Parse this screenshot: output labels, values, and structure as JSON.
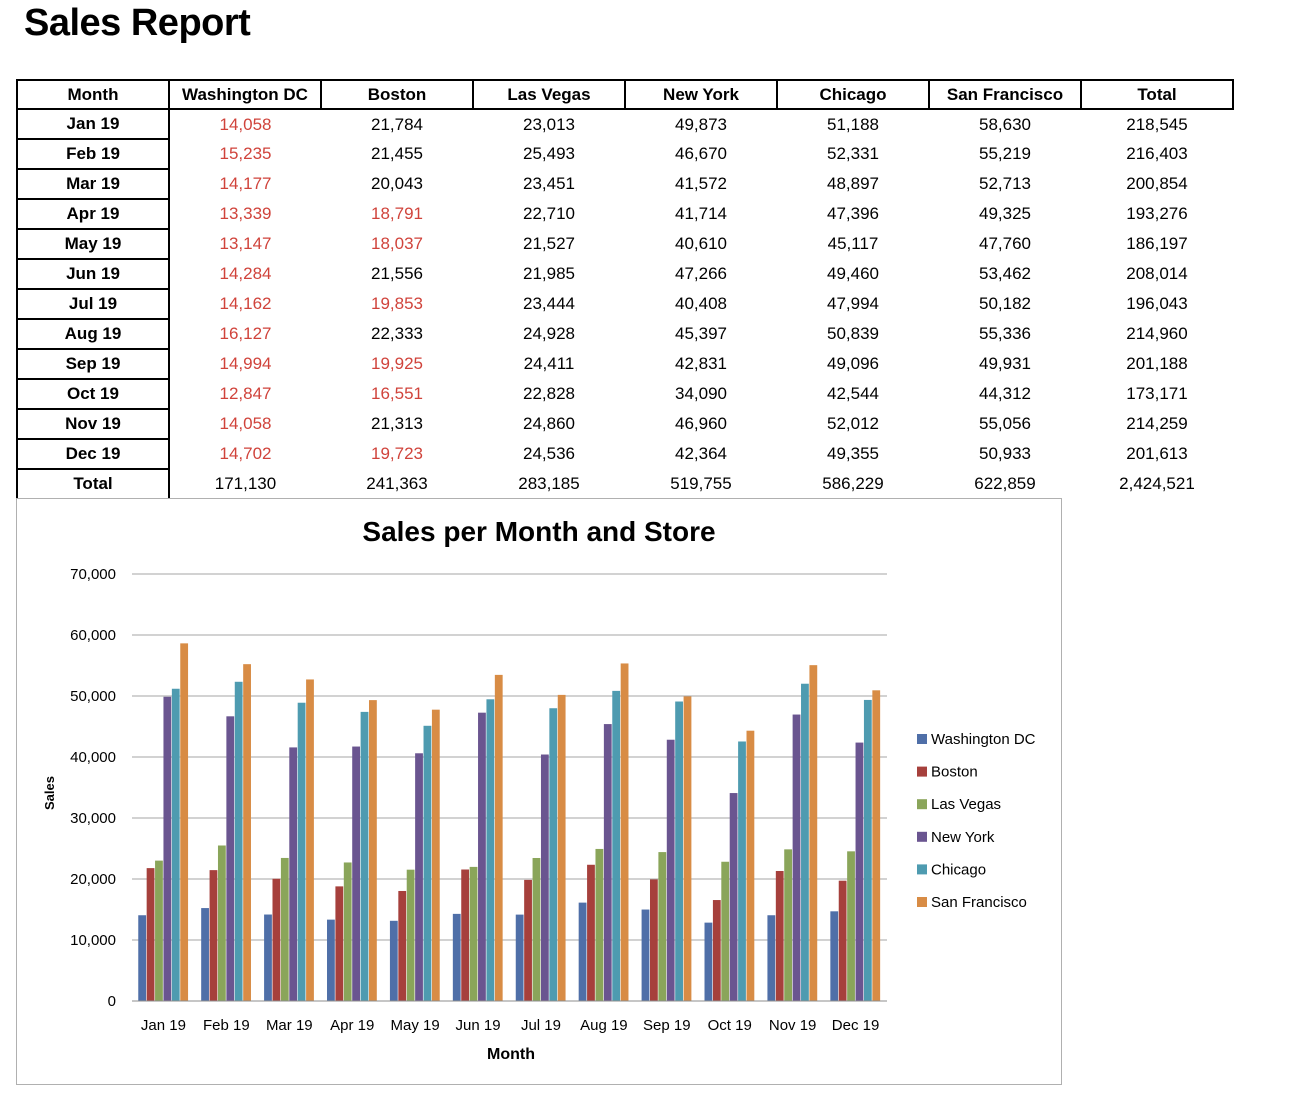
{
  "report": {
    "title": "Sales Report"
  },
  "table": {
    "header_first": "Month",
    "header_total": "Total",
    "total_row_label": "Total",
    "low_threshold": 20000,
    "column_totals": [
      "171,130",
      "241,363",
      "283,185",
      "519,755",
      "586,229",
      "622,859"
    ],
    "grand_total": "2,424,521",
    "row_totals": [
      "218,545",
      "216,403",
      "200,854",
      "193,276",
      "186,197",
      "208,014",
      "196,043",
      "214,960",
      "201,188",
      "173,171",
      "214,259",
      "201,613"
    ]
  },
  "colors": {
    "low_value_text": "#d0433b",
    "gridline": "#a6a6a6"
  },
  "chart_data": {
    "type": "bar",
    "title": "Sales per Month and Store",
    "xlabel": "Month",
    "ylabel": "Sales",
    "ylim": [
      0,
      70000
    ],
    "yticks": [
      "0",
      "10,000",
      "20,000",
      "30,000",
      "40,000",
      "50,000",
      "60,000",
      "70,000"
    ],
    "grid": true,
    "legend": "right",
    "categories": [
      "Jan 19",
      "Feb 19",
      "Mar 19",
      "Apr 19",
      "May 19",
      "Jun 19",
      "Jul 19",
      "Aug 19",
      "Sep 19",
      "Oct 19",
      "Nov 19",
      "Dec 19"
    ],
    "series": [
      {
        "name": "Washington DC",
        "color": "#4f6fa8",
        "values": [
          14058,
          15235,
          14177,
          13339,
          13147,
          14284,
          14162,
          16127,
          14994,
          12847,
          14058,
          14702
        ]
      },
      {
        "name": "Boston",
        "color": "#a6403c",
        "values": [
          21784,
          21455,
          20043,
          18791,
          18037,
          21556,
          19853,
          22333,
          19925,
          16551,
          21313,
          19723
        ]
      },
      {
        "name": "Las Vegas",
        "color": "#8aa55a",
        "values": [
          23013,
          25493,
          23451,
          22710,
          21527,
          21985,
          23444,
          24928,
          24411,
          22828,
          24860,
          24536
        ]
      },
      {
        "name": "New York",
        "color": "#6a5590",
        "values": [
          49873,
          46670,
          41572,
          41714,
          40610,
          47266,
          40408,
          45397,
          42831,
          34090,
          46960,
          42364
        ]
      },
      {
        "name": "Chicago",
        "color": "#4e9bb0",
        "values": [
          51188,
          52331,
          48897,
          47396,
          45117,
          49460,
          47994,
          50839,
          49096,
          42544,
          52012,
          49355
        ]
      },
      {
        "name": "San Francisco",
        "color": "#d88c45",
        "values": [
          58630,
          55219,
          52713,
          49325,
          47760,
          53462,
          50182,
          55336,
          49931,
          44312,
          55056,
          50933
        ]
      }
    ]
  }
}
